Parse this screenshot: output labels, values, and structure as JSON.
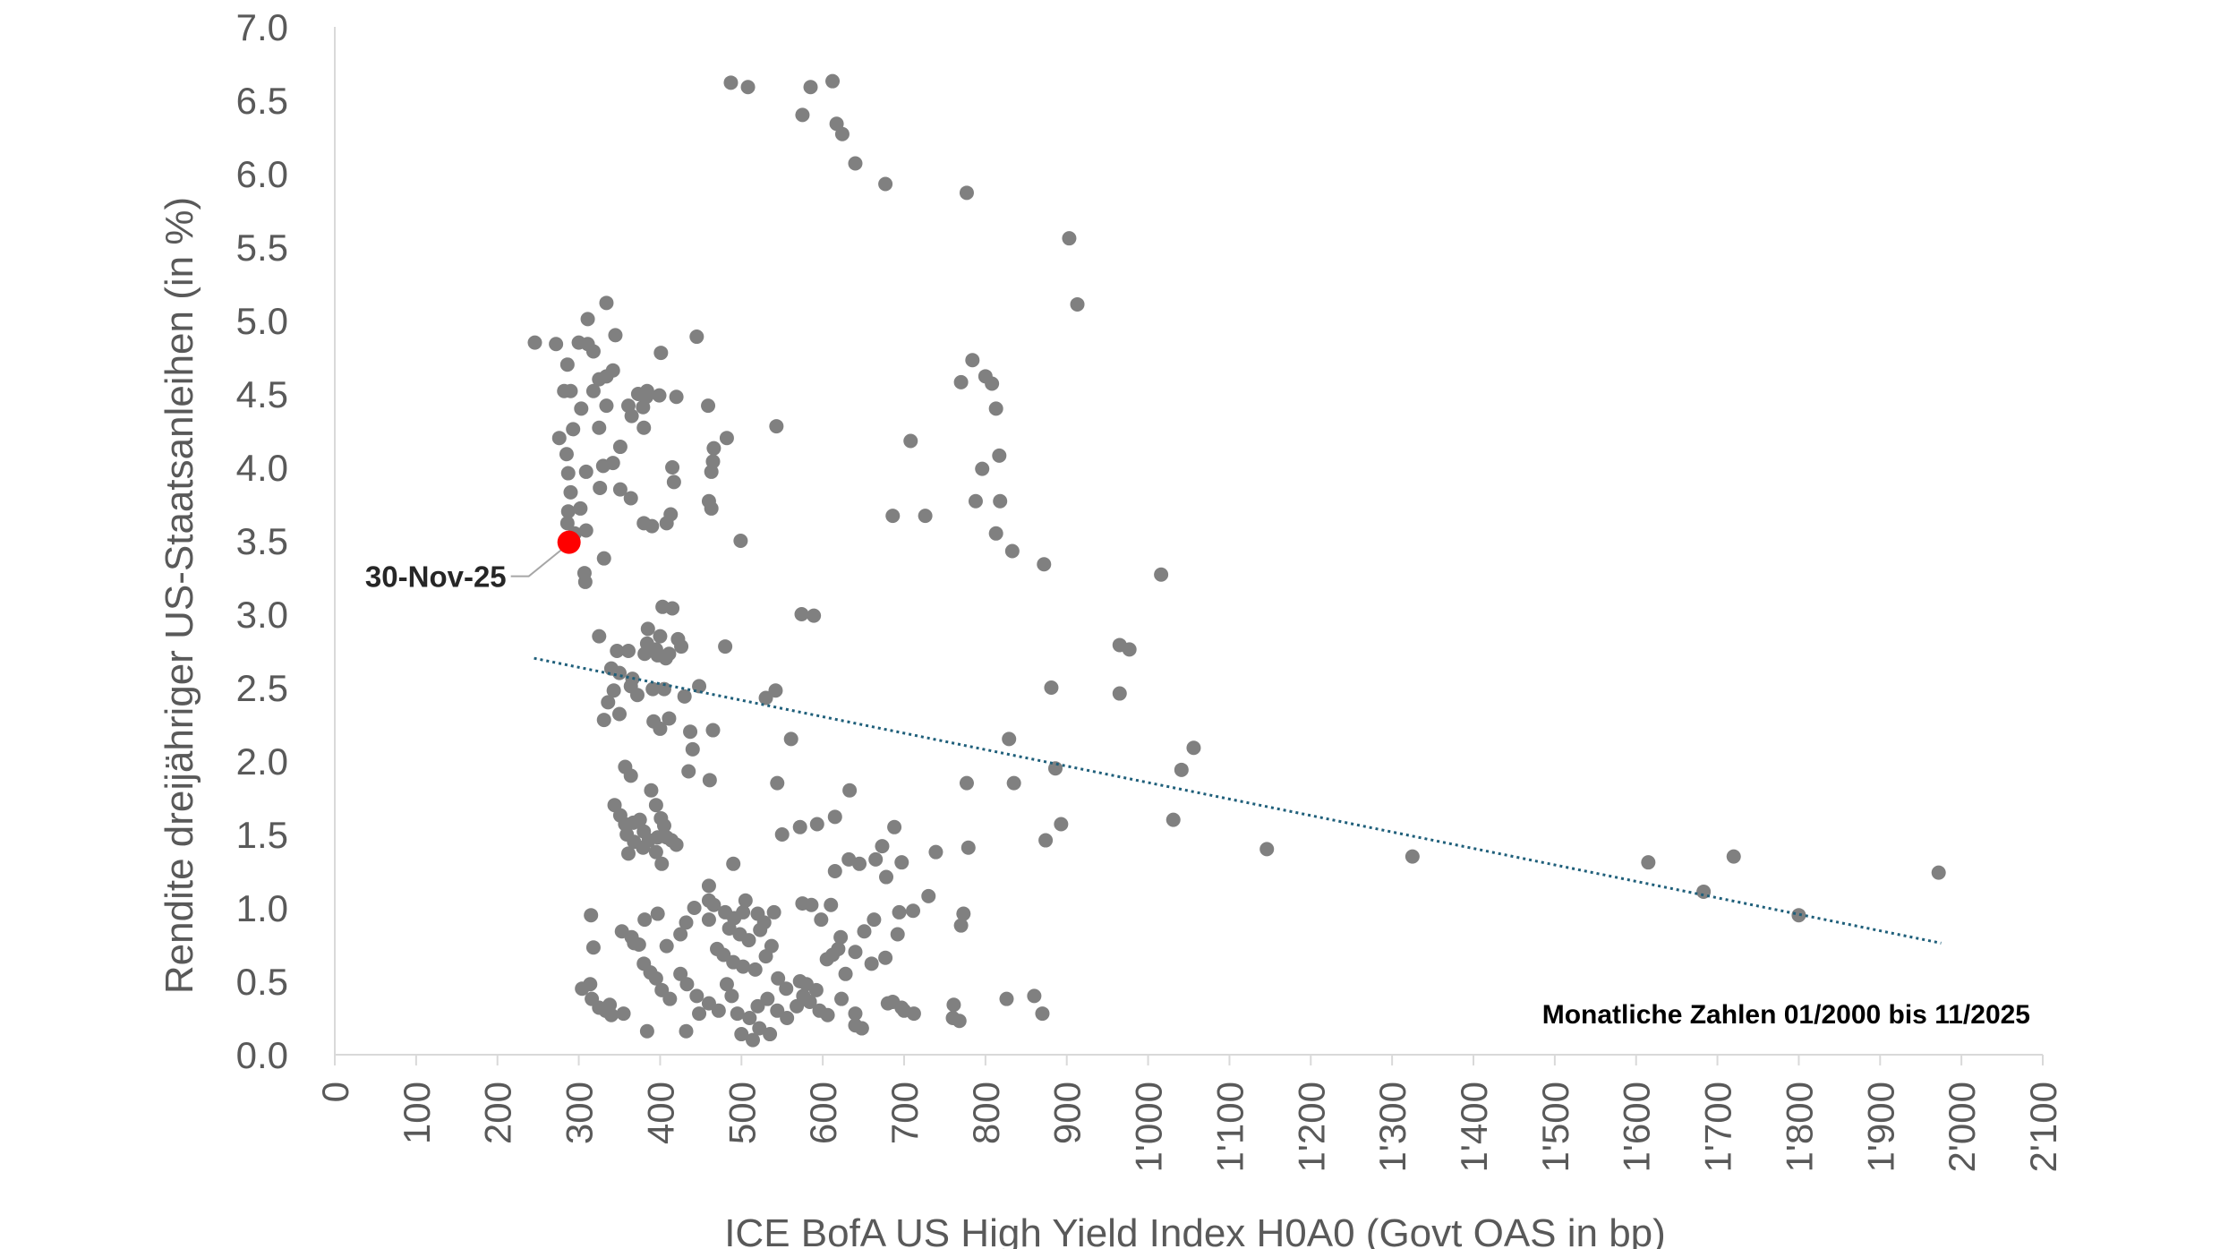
{
  "chart_data": {
    "type": "scatter",
    "title": "",
    "xlabel": "ICE BofA US High Yield Index H0A0 (Govt OAS in bp)",
    "ylabel": "Rendite dreijähriger US-Staatsanleihen (in %)",
    "xlim": [
      0,
      2100
    ],
    "ylim": [
      0.0,
      7.0
    ],
    "x_ticks": [
      0,
      100,
      200,
      300,
      400,
      500,
      600,
      700,
      800,
      900,
      1000,
      1100,
      1200,
      1300,
      1400,
      1500,
      1600,
      1700,
      1800,
      1900,
      2000,
      2100
    ],
    "x_tick_labels": [
      "0",
      "100",
      "200",
      "300",
      "400",
      "500",
      "600",
      "700",
      "800",
      "900",
      "1'000",
      "1'100",
      "1'200",
      "1'300",
      "1'400",
      "1'500",
      "1'600",
      "1'700",
      "1'800",
      "1'900",
      "2'000",
      "2'100"
    ],
    "y_ticks": [
      0.0,
      0.5,
      1.0,
      1.5,
      2.0,
      2.5,
      3.0,
      3.5,
      4.0,
      4.5,
      5.0,
      5.5,
      6.0,
      6.5,
      7.0
    ],
    "y_tick_labels": [
      "0.0",
      "0.5",
      "1.0",
      "1.5",
      "2.0",
      "2.5",
      "3.0",
      "3.5",
      "4.0",
      "4.5",
      "5.0",
      "5.5",
      "6.0",
      "6.5",
      "7.0"
    ],
    "grid": false,
    "colors": {
      "points": "#808080",
      "highlight": "#ff0000",
      "trend": "#1f5f7a",
      "axis": "#d9d9d9"
    },
    "series": [
      {
        "points": [
          [
            487,
            6.62
          ],
          [
            508,
            6.59
          ],
          [
            585,
            6.59
          ],
          [
            612,
            6.63
          ],
          [
            575,
            6.4
          ],
          [
            617,
            6.34
          ],
          [
            624,
            6.27
          ],
          [
            640,
            6.07
          ],
          [
            677,
            5.93
          ],
          [
            777,
            5.87
          ],
          [
            903,
            5.56
          ],
          [
            913,
            5.11
          ],
          [
            334,
            5.12
          ],
          [
            311,
            5.01
          ],
          [
            246,
            4.85
          ],
          [
            272,
            4.84
          ],
          [
            300,
            4.85
          ],
          [
            311,
            4.84
          ],
          [
            318,
            4.79
          ],
          [
            345,
            4.9
          ],
          [
            401,
            4.78
          ],
          [
            445,
            4.89
          ],
          [
            286,
            4.7
          ],
          [
            325,
            4.6
          ],
          [
            334,
            4.62
          ],
          [
            342,
            4.66
          ],
          [
            318,
            4.52
          ],
          [
            282,
            4.52
          ],
          [
            290,
            4.52
          ],
          [
            373,
            4.5
          ],
          [
            384,
            4.52
          ],
          [
            399,
            4.49
          ],
          [
            420,
            4.48
          ],
          [
            459,
            4.42
          ],
          [
            303,
            4.4
          ],
          [
            334,
            4.42
          ],
          [
            325,
            4.27
          ],
          [
            293,
            4.26
          ],
          [
            276,
            4.2
          ],
          [
            285,
            4.09
          ],
          [
            351,
            4.14
          ],
          [
            361,
            4.42
          ],
          [
            365,
            4.35
          ],
          [
            380,
            4.27
          ],
          [
            379,
            4.41
          ],
          [
            383,
            4.48
          ],
          [
            466,
            4.13
          ],
          [
            482,
            4.2
          ],
          [
            465,
            4.04
          ],
          [
            463,
            3.97
          ],
          [
            415,
            4.0
          ],
          [
            417,
            3.9
          ],
          [
            342,
            4.03
          ],
          [
            330,
            4.01
          ],
          [
            351,
            3.85
          ],
          [
            364,
            3.79
          ],
          [
            326,
            3.86
          ],
          [
            309,
            3.97
          ],
          [
            287,
            3.96
          ],
          [
            290,
            3.83
          ],
          [
            287,
            3.7
          ],
          [
            302,
            3.72
          ],
          [
            380,
            3.62
          ],
          [
            390,
            3.6
          ],
          [
            408,
            3.62
          ],
          [
            413,
            3.68
          ],
          [
            460,
            3.77
          ],
          [
            463,
            3.72
          ],
          [
            309,
            3.57
          ],
          [
            286,
            3.62
          ],
          [
            295,
            3.55
          ],
          [
            293,
            3.48
          ],
          [
            331,
            3.38
          ],
          [
            307,
            3.28
          ],
          [
            308,
            3.22
          ],
          [
            499,
            3.5
          ],
          [
            543,
            4.28
          ],
          [
            708,
            4.18
          ],
          [
            770,
            4.58
          ],
          [
            784,
            4.73
          ],
          [
            800,
            4.62
          ],
          [
            808,
            4.57
          ],
          [
            813,
            4.4
          ],
          [
            817,
            4.08
          ],
          [
            796,
            3.99
          ],
          [
            788,
            3.77
          ],
          [
            818,
            3.77
          ],
          [
            813,
            3.55
          ],
          [
            833,
            3.43
          ],
          [
            872,
            3.34
          ],
          [
            686,
            3.67
          ],
          [
            726,
            3.67
          ],
          [
            1016,
            3.27
          ],
          [
            574,
            3.0
          ],
          [
            589,
            2.99
          ],
          [
            403,
            3.05
          ],
          [
            415,
            3.04
          ],
          [
            385,
            2.9
          ],
          [
            400,
            2.85
          ],
          [
            422,
            2.83
          ],
          [
            384,
            2.8
          ],
          [
            395,
            2.76
          ],
          [
            381,
            2.73
          ],
          [
            397,
            2.72
          ],
          [
            407,
            2.7
          ],
          [
            411,
            2.73
          ],
          [
            426,
            2.78
          ],
          [
            325,
            2.85
          ],
          [
            347,
            2.75
          ],
          [
            361,
            2.75
          ],
          [
            340,
            2.63
          ],
          [
            350,
            2.6
          ],
          [
            366,
            2.56
          ],
          [
            364,
            2.51
          ],
          [
            343,
            2.48
          ],
          [
            336,
            2.4
          ],
          [
            372,
            2.45
          ],
          [
            391,
            2.49
          ],
          [
            405,
            2.49
          ],
          [
            430,
            2.44
          ],
          [
            448,
            2.51
          ],
          [
            480,
            2.78
          ],
          [
            530,
            2.43
          ],
          [
            542,
            2.48
          ],
          [
            331,
            2.28
          ],
          [
            350,
            2.32
          ],
          [
            392,
            2.27
          ],
          [
            400,
            2.22
          ],
          [
            411,
            2.29
          ],
          [
            437,
            2.2
          ],
          [
            465,
            2.21
          ],
          [
            440,
            2.08
          ],
          [
            435,
            1.93
          ],
          [
            461,
            1.87
          ],
          [
            357,
            1.96
          ],
          [
            364,
            1.9
          ],
          [
            344,
            1.7
          ],
          [
            351,
            1.63
          ],
          [
            357,
            1.57
          ],
          [
            359,
            1.5
          ],
          [
            367,
            1.58
          ],
          [
            375,
            1.6
          ],
          [
            389,
            1.8
          ],
          [
            395,
            1.7
          ],
          [
            380,
            1.52
          ],
          [
            386,
            1.46
          ],
          [
            397,
            1.48
          ],
          [
            401,
            1.61
          ],
          [
            405,
            1.56
          ],
          [
            408,
            1.48
          ],
          [
            414,
            1.46
          ],
          [
            420,
            1.43
          ],
          [
            395,
            1.38
          ],
          [
            379,
            1.41
          ],
          [
            368,
            1.45
          ],
          [
            361,
            1.37
          ],
          [
            402,
            1.3
          ],
          [
            561,
            2.15
          ],
          [
            544,
            1.85
          ],
          [
            550,
            1.5
          ],
          [
            572,
            1.55
          ],
          [
            593,
            1.57
          ],
          [
            615,
            1.62
          ],
          [
            633,
            1.8
          ],
          [
            688,
            1.55
          ],
          [
            673,
            1.42
          ],
          [
            678,
            1.21
          ],
          [
            697,
            1.31
          ],
          [
            739,
            1.38
          ],
          [
            779,
            1.41
          ],
          [
            777,
            1.85
          ],
          [
            835,
            1.85
          ],
          [
            893,
            1.57
          ],
          [
            874,
            1.46
          ],
          [
            886,
            1.95
          ],
          [
            881,
            2.5
          ],
          [
            829,
            2.15
          ],
          [
            965,
            2.79
          ],
          [
            977,
            2.76
          ],
          [
            965,
            2.46
          ],
          [
            1056,
            2.09
          ],
          [
            1041,
            1.94
          ],
          [
            1031,
            1.6
          ],
          [
            1146,
            1.4
          ],
          [
            1325,
            1.35
          ],
          [
            1615,
            1.31
          ],
          [
            1683,
            1.11
          ],
          [
            1720,
            1.35
          ],
          [
            1800,
            0.95
          ],
          [
            1972,
            1.24
          ],
          [
            315,
            0.95
          ],
          [
            318,
            0.73
          ],
          [
            304,
            0.45
          ],
          [
            314,
            0.48
          ],
          [
            316,
            0.38
          ],
          [
            325,
            0.32
          ],
          [
            333,
            0.3
          ],
          [
            338,
            0.34
          ],
          [
            353,
            0.84
          ],
          [
            365,
            0.8
          ],
          [
            368,
            0.76
          ],
          [
            381,
            0.92
          ],
          [
            397,
            0.96
          ],
          [
            408,
            0.74
          ],
          [
            425,
            0.82
          ],
          [
            432,
            0.9
          ],
          [
            442,
            1.0
          ],
          [
            460,
            0.92
          ],
          [
            466,
            1.02
          ],
          [
            480,
            0.97
          ],
          [
            491,
            0.93
          ],
          [
            502,
            0.97
          ],
          [
            505,
            1.05
          ],
          [
            520,
            0.96
          ],
          [
            528,
            0.9
          ],
          [
            540,
            0.97
          ],
          [
            523,
            0.85
          ],
          [
            509,
            0.78
          ],
          [
            498,
            0.82
          ],
          [
            485,
            0.86
          ],
          [
            470,
            0.72
          ],
          [
            478,
            0.68
          ],
          [
            490,
            0.63
          ],
          [
            502,
            0.6
          ],
          [
            517,
            0.58
          ],
          [
            530,
            0.67
          ],
          [
            537,
            0.74
          ],
          [
            545,
            0.52
          ],
          [
            555,
            0.45
          ],
          [
            572,
            0.5
          ],
          [
            580,
            0.48
          ],
          [
            592,
            0.44
          ],
          [
            605,
            0.65
          ],
          [
            612,
            0.68
          ],
          [
            619,
            0.72
          ],
          [
            628,
            0.55
          ],
          [
            640,
            0.7
          ],
          [
            651,
            0.84
          ],
          [
            663,
            0.92
          ],
          [
            677,
            0.66
          ],
          [
            692,
            0.82
          ],
          [
            694,
            0.97
          ],
          [
            711,
            0.98
          ],
          [
            770,
            0.88
          ],
          [
            773,
            0.96
          ],
          [
            660,
            0.62
          ],
          [
            374,
            0.75
          ],
          [
            380,
            0.62
          ],
          [
            388,
            0.56
          ],
          [
            395,
            0.52
          ],
          [
            402,
            0.44
          ],
          [
            412,
            0.38
          ],
          [
            425,
            0.55
          ],
          [
            433,
            0.48
          ],
          [
            445,
            0.4
          ],
          [
            460,
            0.35
          ],
          [
            472,
            0.3
          ],
          [
            488,
            0.4
          ],
          [
            495,
            0.28
          ],
          [
            510,
            0.25
          ],
          [
            520,
            0.33
          ],
          [
            532,
            0.38
          ],
          [
            544,
            0.3
          ],
          [
            556,
            0.25
          ],
          [
            568,
            0.33
          ],
          [
            576,
            0.4
          ],
          [
            584,
            0.36
          ],
          [
            596,
            0.3
          ],
          [
            606,
            0.27
          ],
          [
            623,
            0.38
          ],
          [
            640,
            0.28
          ],
          [
            648,
            0.18
          ],
          [
            680,
            0.35
          ],
          [
            686,
            0.36
          ],
          [
            697,
            0.32
          ],
          [
            712,
            0.28
          ],
          [
            761,
            0.34
          ],
          [
            768,
            0.23
          ],
          [
            826,
            0.38
          ],
          [
            870,
            0.28
          ],
          [
            355,
            0.28
          ],
          [
            384,
            0.16
          ],
          [
            432,
            0.16
          ],
          [
            448,
            0.28
          ],
          [
            482,
            0.48
          ],
          [
            500,
            0.14
          ],
          [
            514,
            0.1
          ],
          [
            522,
            0.18
          ],
          [
            535,
            0.14
          ],
          [
            640,
            0.2
          ],
          [
            648,
            0.18
          ],
          [
            340,
            0.27
          ],
          [
            460,
            1.15
          ],
          [
            490,
            1.3
          ],
          [
            460,
            1.05
          ],
          [
            575,
            1.03
          ],
          [
            586,
            1.02
          ],
          [
            598,
            0.92
          ],
          [
            610,
            1.02
          ],
          [
            622,
            0.8
          ],
          [
            645,
            1.3
          ],
          [
            665,
            1.33
          ],
          [
            632,
            1.33
          ],
          [
            615,
            1.25
          ],
          [
            700,
            0.3
          ],
          [
            730,
            1.08
          ],
          [
            760,
            0.25
          ],
          [
            860,
            0.4
          ]
        ]
      }
    ],
    "trend": {
      "x": [
        245,
        1975
      ],
      "y": [
        2.7,
        0.76
      ]
    },
    "highlight": {
      "x": 288,
      "y": 3.49,
      "label": "30-Nov-25"
    },
    "note": "Monatliche Zahlen 01/2000 bis 11/2025"
  }
}
